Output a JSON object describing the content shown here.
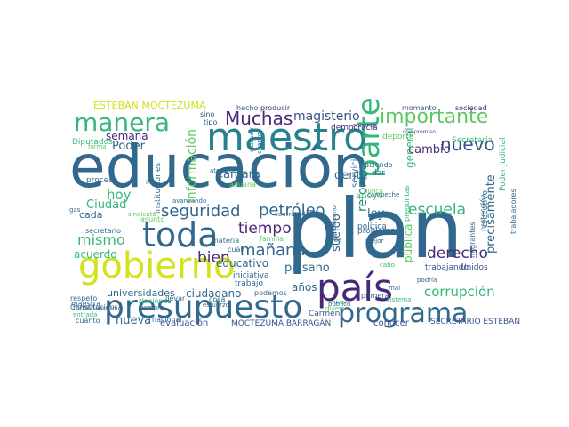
{
  "word_cloud": {
    "palette": [
      "#440154",
      "#3b528b",
      "#21908d",
      "#5dc863",
      "#fde725",
      "#31688e",
      "#35b779",
      "#d2e21b",
      "#482878",
      "#26828e"
    ],
    "words": [
      {
        "text": "educación",
        "color": "#31688e"
      },
      {
        "text": "plan",
        "color": "#31688e"
      },
      {
        "text": "maestro",
        "color": "#26828e"
      },
      {
        "text": "gobierno",
        "color": "#d2e21b"
      },
      {
        "text": "país",
        "color": "#482878"
      },
      {
        "text": "presupuesto",
        "color": "#31688e"
      },
      {
        "text": "toda",
        "color": "#31688e"
      },
      {
        "text": "programa",
        "color": "#31688e"
      },
      {
        "text": "manera",
        "color": "#35b779"
      },
      {
        "text": "importante",
        "color": "#5dc863"
      },
      {
        "text": "parte",
        "color": "#35b779"
      },
      {
        "text": "Muchas",
        "color": "#482878"
      },
      {
        "text": "seguridad",
        "color": "#31688e"
      },
      {
        "text": "petróleo",
        "color": "#31688e"
      },
      {
        "text": "nuevo",
        "color": "#3b528b"
      },
      {
        "text": "tiempo",
        "color": "#482878"
      },
      {
        "text": "mismo",
        "color": "#35b779"
      },
      {
        "text": "escuela",
        "color": "#35b779"
      },
      {
        "text": "mañana",
        "color": "#31688e"
      },
      {
        "text": "bien",
        "color": "#482878"
      },
      {
        "text": "derecho",
        "color": "#482878"
      },
      {
        "text": "corrupción",
        "color": "#35b779"
      },
      {
        "text": "magisterio",
        "color": "#3b528b"
      },
      {
        "text": "hoy",
        "color": "#35b779"
      },
      {
        "text": "información",
        "color": "#5dc863"
      },
      {
        "text": "ESTEBAN MOCTEZUMA",
        "color": "#d2e21b"
      },
      {
        "text": "Cámara",
        "color": "#31688e"
      },
      {
        "text": "gente",
        "color": "#31688e"
      },
      {
        "text": "reforma",
        "color": "#26828e"
      },
      {
        "text": "cambio",
        "color": "#482878"
      },
      {
        "text": "paisano",
        "color": "#31688e"
      },
      {
        "text": "universidades",
        "color": "#31688e"
      },
      {
        "text": "ciudadano",
        "color": "#31688e"
      },
      {
        "text": "nueva",
        "color": "#31688e"
      },
      {
        "text": "años",
        "color": "#31688e"
      },
      {
        "text": "precisamente",
        "color": "#31688e"
      },
      {
        "text": "sueldo",
        "color": "#31688e"
      },
      {
        "text": "ley",
        "color": "#31688e"
      },
      {
        "text": "Ciudad",
        "color": "#35b779"
      },
      {
        "text": "acuerdo",
        "color": "#35b779"
      },
      {
        "text": "educativo",
        "color": "#31688e"
      },
      {
        "text": "semana",
        "color": "#482878"
      },
      {
        "text": "Poder",
        "color": "#31688e"
      },
      {
        "text": "general",
        "color": "#35b779"
      },
      {
        "text": "pública",
        "color": "#5dc863"
      },
      {
        "text": "cada",
        "color": "#31688e"
      },
      {
        "text": "evaluación",
        "color": "#3b528b"
      },
      {
        "text": "MOCTEZUMA BARRAGÁN",
        "color": "#3b528b"
      },
      {
        "text": "SECRETARIO ESTEBAN",
        "color": "#3b528b"
      },
      {
        "text": "conocer",
        "color": "#3b528b"
      },
      {
        "text": "Carmen",
        "color": "#3b528b"
      },
      {
        "text": "trabajando",
        "color": "#3b528b"
      },
      {
        "text": "Unidos",
        "color": "#3b528b"
      },
      {
        "text": "Diputados",
        "color": "#35b779"
      },
      {
        "text": "instituciones",
        "color": "#31688e"
      },
      {
        "text": "proceso",
        "color": "#31688e"
      },
      {
        "text": "iniciativa",
        "color": "#31688e"
      },
      {
        "text": "trabajo",
        "color": "#31688e"
      },
      {
        "text": "materia",
        "color": "#31688e"
      },
      {
        "text": "aduana",
        "color": "#5dc863"
      },
      {
        "text": "servicio",
        "color": "#31688e"
      },
      {
        "text": "apoyo",
        "color": "#5dc863"
      },
      {
        "text": "Secretaría",
        "color": "#35b779"
      },
      {
        "text": "Poder Judicial",
        "color": "#35b779"
      },
      {
        "text": "democracia",
        "color": "#482878"
      },
      {
        "text": "deporte",
        "color": "#5dc863"
      },
      {
        "text": "sociedad",
        "color": "#482878"
      },
      {
        "text": "momento",
        "color": "#3b528b"
      },
      {
        "text": "producir",
        "color": "#482878"
      },
      {
        "text": "hecho",
        "color": "#3b528b"
      },
      {
        "text": "sino",
        "color": "#3b528b"
      },
      {
        "text": "tipo",
        "color": "#3b528b"
      },
      {
        "text": "recurso",
        "color": "#3b528b"
      },
      {
        "text": "compromiso",
        "color": "#3b528b"
      },
      {
        "text": "haciendo",
        "color": "#31688e"
      },
      {
        "text": "dar",
        "color": "#31688e"
      },
      {
        "text": "problema",
        "color": "#31688e"
      },
      {
        "text": "primera",
        "color": "#31688e"
      },
      {
        "text": "política",
        "color": "#31688e"
      },
      {
        "text": "podemos",
        "color": "#31688e"
      },
      {
        "text": "cuál",
        "color": "#31688e"
      },
      {
        "text": "familia",
        "color": "#5dc863"
      },
      {
        "text": "secretario",
        "color": "#31688e"
      },
      {
        "text": "respeto",
        "color": "#31688e"
      },
      {
        "text": "Constitución",
        "color": "#31688e"
      },
      {
        "text": "todavía",
        "color": "#31688e"
      },
      {
        "text": "maestra",
        "color": "#31688e"
      },
      {
        "text": "entrada",
        "color": "#35b779"
      },
      {
        "text": "cuánto",
        "color": "#31688e"
      },
      {
        "text": "estudio",
        "color": "#31688e"
      },
      {
        "text": "nacional",
        "color": "#31688e"
      },
      {
        "text": "Nacional",
        "color": "#35b779"
      },
      {
        "text": "siempre",
        "color": "#31688e"
      },
      {
        "text": "llevar",
        "color": "#31688e"
      },
      {
        "text": "esfuerzo",
        "color": "#31688e"
      },
      {
        "text": "cosa",
        "color": "#31688e"
      },
      {
        "text": "nivel",
        "color": "#35b779"
      },
      {
        "text": "quiero",
        "color": "#5dc863"
      },
      {
        "text": "público",
        "color": "#31688e"
      },
      {
        "text": "sistema",
        "color": "#35b779"
      },
      {
        "text": "mal",
        "color": "#31688e"
      },
      {
        "text": "cabo",
        "color": "#35b779"
      },
      {
        "text": "mejor",
        "color": "#31688e"
      },
      {
        "text": "tarea",
        "color": "#31688e"
      },
      {
        "text": "mexicano",
        "color": "#31688e"
      },
      {
        "text": "contrato",
        "color": "#31688e"
      },
      {
        "text": "darle",
        "color": "#31688e"
      },
      {
        "text": "asunto",
        "color": "#5dc863"
      },
      {
        "text": "sindicato",
        "color": "#5dc863"
      },
      {
        "text": "avanzando",
        "color": "#31688e"
      },
      {
        "text": "gas",
        "color": "#31688e"
      },
      {
        "text": "ir",
        "color": "#31688e"
      },
      {
        "text": "forma",
        "color": "#5dc863"
      },
      {
        "text": "atención",
        "color": "#31688e"
      },
      {
        "text": "campeche",
        "color": "#31688e"
      },
      {
        "text": "preguntas",
        "color": "#35b779"
      },
      {
        "text": "trabajadores",
        "color": "#31688e"
      },
      {
        "text": "migrantes",
        "color": "#31688e"
      },
      {
        "text": "ejecutivo",
        "color": "#31688e"
      },
      {
        "text": "protección",
        "color": "#31688e"
      },
      {
        "text": "podría",
        "color": "#31688e"
      },
      {
        "text": "nunca",
        "color": "#5dc863"
      },
      {
        "text": "cuanto",
        "color": "#31688e"
      },
      {
        "text": "cualquier",
        "color": "#31688e"
      }
    ]
  }
}
